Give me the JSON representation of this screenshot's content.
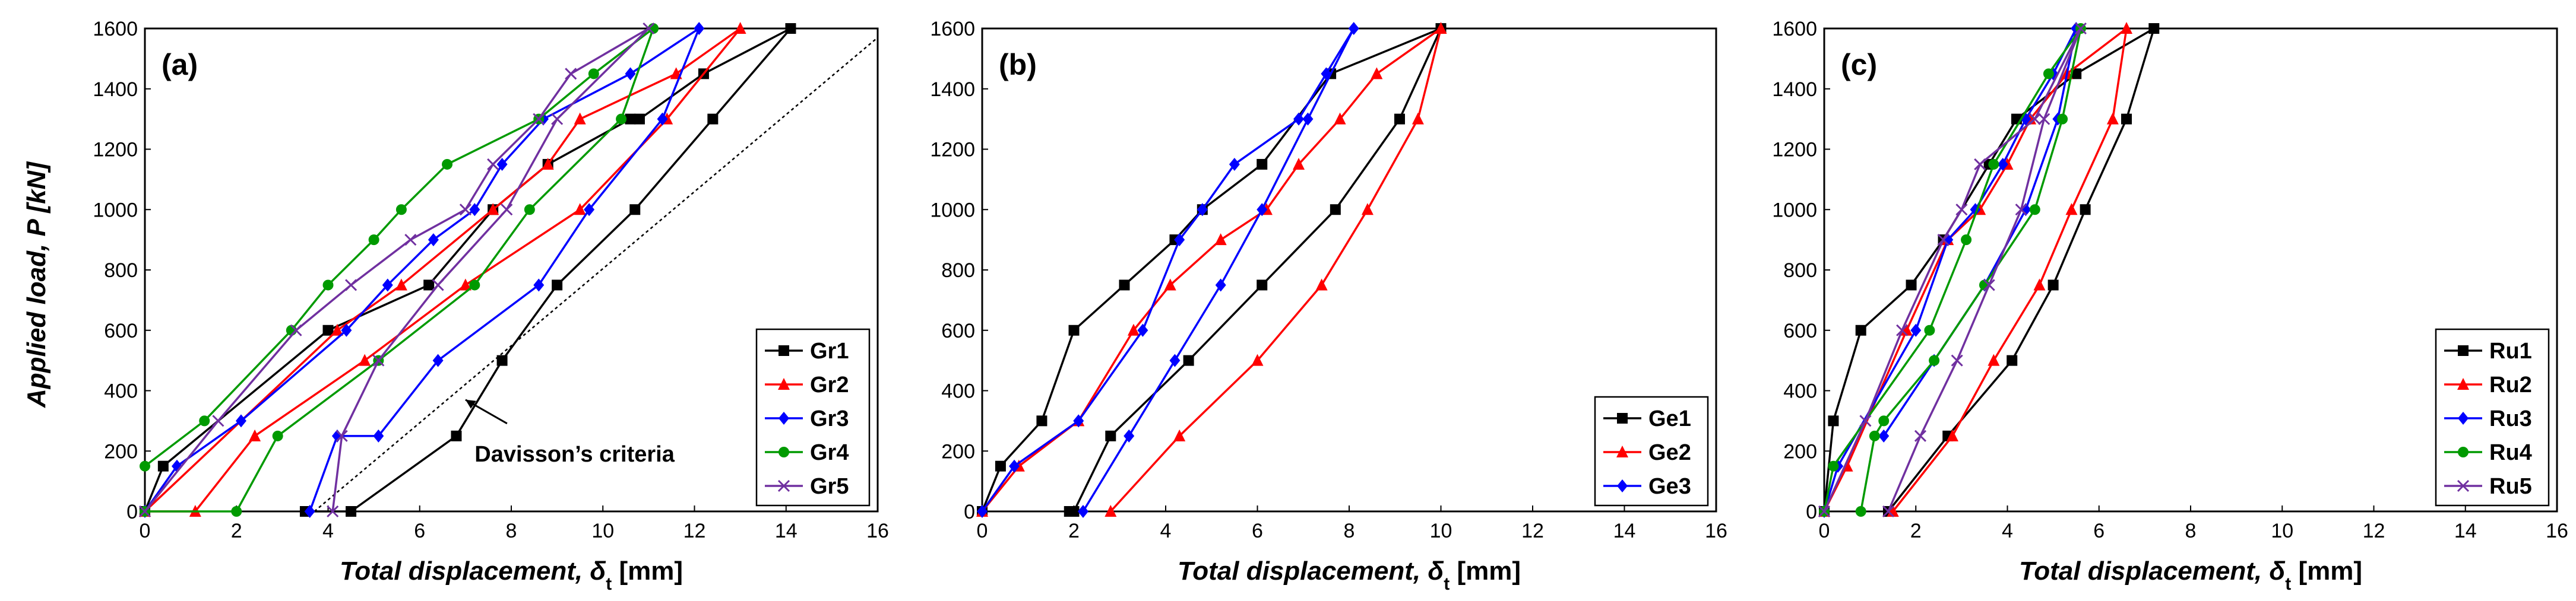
{
  "figure": {
    "shared_ylabel": "Applied load, P [kN]",
    "shared_xlabel": "Total displacement, δt [mm]"
  },
  "colors": {
    "black": "#000000",
    "red": "#ff0000",
    "blue": "#0000ff",
    "green": "#009a00",
    "purple": "#7030a0"
  },
  "chart_data": [
    {
      "type": "line",
      "panel_label": "(a)",
      "xlabel": "Total displacement, δt [mm]",
      "ylabel": "Applied load, P [kN]",
      "xlim": [
        0,
        16
      ],
      "ylim": [
        0,
        1600
      ],
      "xticks": [
        "0",
        "2",
        "4",
        "6",
        "8",
        "10",
        "12",
        "14",
        "16"
      ],
      "yticks": [
        "0",
        "200",
        "400",
        "600",
        "800",
        "1000",
        "1200",
        "1400",
        "1600"
      ],
      "legend_position": "bottom-right",
      "annotation": {
        "text": "Davisson’s criteria",
        "line": [
          [
            3.7,
            0
          ],
          [
            16,
            1570
          ]
        ],
        "arrow_to": [
          7.0,
          370
        ]
      },
      "series": [
        {
          "name": "Gr1",
          "color": "#000000",
          "marker": "square",
          "x": [
            0,
            0.4,
            4.0,
            6.2,
            7.6,
            8.8,
            10.6,
            10.8,
            12.2,
            14.1,
            12.4,
            10.7,
            9.0,
            7.8,
            6.8,
            4.5,
            3.5
          ],
          "y": [
            0,
            150,
            600,
            750,
            1000,
            1150,
            1300,
            1300,
            1450,
            1600,
            1300,
            1000,
            750,
            500,
            250,
            0,
            0
          ]
        },
        {
          "name": "Gr2",
          "color": "#ff0000",
          "marker": "triangle",
          "x": [
            0,
            4.2,
            5.6,
            7.6,
            8.8,
            9.5,
            11.6,
            13.0,
            11.4,
            9.5,
            7.0,
            4.8,
            2.4,
            1.1,
            0
          ],
          "y": [
            0,
            600,
            750,
            1000,
            1150,
            1300,
            1450,
            1600,
            1300,
            1000,
            750,
            500,
            250,
            0,
            0
          ]
        },
        {
          "name": "Gr3",
          "color": "#0000ff",
          "marker": "diamond",
          "x": [
            0,
            0.7,
            2.1,
            4.4,
            5.3,
            6.3,
            7.2,
            7.8,
            8.7,
            10.6,
            12.1,
            11.3,
            9.7,
            8.6,
            6.4,
            5.1,
            4.2,
            3.6
          ],
          "y": [
            0,
            150,
            300,
            600,
            750,
            900,
            1000,
            1150,
            1300,
            1450,
            1600,
            1300,
            1000,
            750,
            500,
            250,
            250,
            0
          ]
        },
        {
          "name": "Gr4",
          "color": "#009a00",
          "marker": "circle",
          "x": [
            0,
            1.3,
            3.2,
            4.0,
            5.0,
            5.6,
            6.6,
            8.6,
            9.8,
            11.1,
            10.4,
            8.4,
            7.2,
            5.1,
            2.9,
            2.0,
            0
          ],
          "y": [
            150,
            300,
            600,
            750,
            900,
            1000,
            1150,
            1300,
            1450,
            1600,
            1300,
            1000,
            750,
            500,
            250,
            0,
            0
          ]
        },
        {
          "name": "Gr5",
          "color": "#7030a0",
          "marker": "x",
          "x": [
            0,
            1.6,
            3.3,
            4.5,
            5.8,
            7.0,
            7.6,
            8.6,
            9.3,
            11.0,
            9.0,
            7.9,
            6.4,
            5.1,
            4.3,
            4.1
          ],
          "y": [
            0,
            300,
            600,
            750,
            900,
            1000,
            1150,
            1300,
            1450,
            1600,
            1300,
            1000,
            750,
            500,
            250,
            0
          ]
        }
      ]
    },
    {
      "type": "line",
      "panel_label": "(b)",
      "xlabel": "Total displacement, δt [mm]",
      "xlim": [
        0,
        16
      ],
      "ylim": [
        0,
        1600
      ],
      "xticks": [
        "0",
        "2",
        "4",
        "6",
        "8",
        "10",
        "12",
        "14",
        "16"
      ],
      "yticks": [
        "0",
        "200",
        "400",
        "600",
        "800",
        "1000",
        "1200",
        "1400",
        "1600"
      ],
      "legend_position": "bottom-right",
      "series": [
        {
          "name": "Ge1",
          "color": "#000000",
          "marker": "square",
          "x": [
            0,
            0.4,
            1.3,
            2.0,
            3.1,
            4.2,
            4.8,
            6.1,
            7.6,
            10.0,
            9.1,
            7.7,
            6.1,
            4.5,
            2.8,
            2.0,
            1.9
          ],
          "y": [
            0,
            150,
            300,
            600,
            750,
            900,
            1000,
            1150,
            1450,
            1600,
            1300,
            1000,
            750,
            500,
            250,
            0,
            0
          ]
        },
        {
          "name": "Ge2",
          "color": "#ff0000",
          "marker": "triangle",
          "x": [
            0,
            0.8,
            2.1,
            3.3,
            4.1,
            5.2,
            6.2,
            6.9,
            7.8,
            8.6,
            10.0,
            9.5,
            8.4,
            7.4,
            6.0,
            4.3,
            2.8
          ],
          "y": [
            0,
            150,
            300,
            600,
            750,
            900,
            1000,
            1150,
            1300,
            1450,
            1600,
            1300,
            1000,
            750,
            500,
            250,
            0
          ]
        },
        {
          "name": "Ge3",
          "color": "#0000ff",
          "marker": "diamond",
          "x": [
            0,
            0.7,
            2.1,
            3.5,
            4.3,
            4.8,
            5.5,
            6.9,
            7.5,
            8.1,
            7.1,
            6.1,
            5.2,
            4.2,
            3.2,
            2.2
          ],
          "y": [
            0,
            150,
            300,
            600,
            900,
            1000,
            1150,
            1300,
            1450,
            1600,
            1300,
            1000,
            750,
            500,
            250,
            0
          ]
        }
      ]
    },
    {
      "type": "line",
      "panel_label": "(c)",
      "xlabel": "Total displacement, δt [mm]",
      "xlim": [
        0,
        16
      ],
      "ylim": [
        0,
        1600
      ],
      "xticks": [
        "0",
        "2",
        "4",
        "6",
        "8",
        "10",
        "12",
        "14",
        "16"
      ],
      "yticks": [
        "0",
        "200",
        "400",
        "600",
        "800",
        "1000",
        "1200",
        "1400",
        "1600"
      ],
      "legend_position": "bottom-right",
      "series": [
        {
          "name": "Ru1",
          "color": "#000000",
          "marker": "square",
          "x": [
            0,
            0.2,
            0.8,
            1.9,
            2.6,
            3.6,
            4.2,
            5.5,
            7.2,
            6.6,
            5.7,
            5.0,
            4.1,
            2.7,
            1.4
          ],
          "y": [
            0,
            300,
            600,
            750,
            900,
            1150,
            1300,
            1450,
            1600,
            1300,
            1000,
            750,
            500,
            250,
            0
          ]
        },
        {
          "name": "Ru2",
          "color": "#ff0000",
          "marker": "triangle",
          "x": [
            0,
            0.5,
            1.8,
            2.7,
            3.4,
            4.0,
            4.5,
            5.3,
            6.6,
            6.3,
            5.4,
            4.7,
            3.7,
            2.8,
            1.5
          ],
          "y": [
            0,
            150,
            600,
            900,
            1000,
            1150,
            1300,
            1450,
            1600,
            1300,
            1000,
            750,
            500,
            250,
            0
          ]
        },
        {
          "name": "Ru3",
          "color": "#0000ff",
          "marker": "diamond",
          "x": [
            0,
            0.3,
            2.0,
            2.7,
            3.3,
            3.9,
            4.4,
            5.0,
            5.5,
            5.1,
            4.4,
            3.5,
            2.4,
            1.3
          ],
          "y": [
            0,
            150,
            600,
            900,
            1000,
            1150,
            1300,
            1450,
            1600,
            1300,
            1000,
            750,
            500,
            250
          ]
        },
        {
          "name": "Ru4",
          "color": "#009a00",
          "marker": "circle",
          "x": [
            0,
            0.2,
            2.3,
            3.1,
            3.7,
            4.9,
            5.6,
            5.2,
            4.6,
            3.5,
            2.4,
            1.3,
            1.1,
            0.8
          ],
          "y": [
            0,
            150,
            600,
            900,
            1150,
            1450,
            1600,
            1300,
            1000,
            750,
            500,
            300,
            250,
            0
          ]
        },
        {
          "name": "Ru5",
          "color": "#7030a0",
          "marker": "x",
          "x": [
            0,
            0.9,
            1.7,
            2.6,
            3.0,
            3.4,
            4.6,
            5.6,
            4.8,
            4.3,
            3.6,
            2.9,
            2.1,
            1.4
          ],
          "y": [
            0,
            300,
            600,
            900,
            1000,
            1150,
            1300,
            1600,
            1300,
            1000,
            750,
            500,
            250,
            0
          ]
        }
      ]
    }
  ]
}
